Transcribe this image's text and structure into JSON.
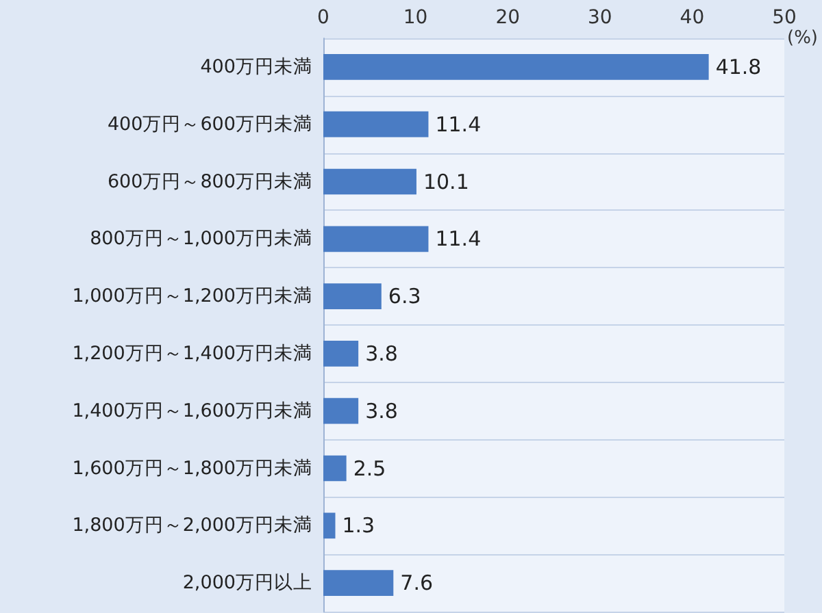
{
  "chart_data": {
    "type": "bar",
    "orientation": "horizontal",
    "xlabel": "(%)",
    "categories": [
      "400万円未満",
      "400万円～600万円未満",
      "600万円～800万円未満",
      "800万円～1,000万円未満",
      "1,000万円～1,200万円未満",
      "1,200万円～1,400万円未満",
      "1,400万円～1,600万円未満",
      "1,600万円～1,800万円未満",
      "1,800万円～2,000万円未満",
      "2,000万円以上"
    ],
    "values": [
      41.8,
      11.4,
      10.1,
      11.4,
      6.3,
      3.8,
      3.8,
      2.5,
      1.3,
      7.6
    ],
    "color": "#4a7cc4",
    "xlim": [
      0,
      50
    ],
    "xticks": [
      0,
      10,
      20,
      30,
      40,
      50
    ],
    "data_labels": true,
    "grid": false
  }
}
